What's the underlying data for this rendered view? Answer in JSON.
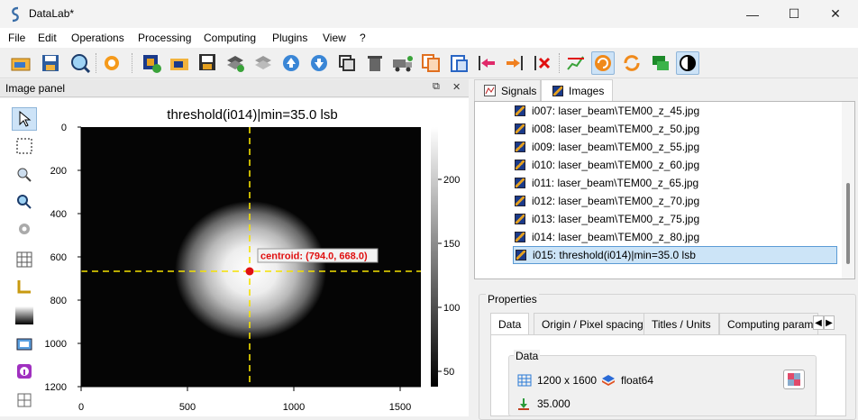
{
  "window": {
    "title": "DataLab*",
    "controls": {
      "minimize": "—",
      "maximize": "☐",
      "close": "✕"
    }
  },
  "menu": [
    "File",
    "Edit",
    "Operations",
    "Processing",
    "Computing",
    "Plugins",
    "View",
    "?"
  ],
  "toolbar_icons": [
    "open-icon",
    "save-icon",
    "zoom-icon",
    "settings-icon",
    "new-image-icon",
    "open-folder-icon",
    "save-image-icon",
    "layers-icon",
    "layers-gray-icon",
    "move-up-icon",
    "move-down-icon",
    "duplicate-icon",
    "delete-icon",
    "truck-icon",
    "copy-icon",
    "paste-icon",
    "import-icon",
    "export-icon",
    "remove-icon",
    "plot-icon",
    "refresh-active-icon",
    "sync-icon",
    "annotation-icon",
    "contrast-icon"
  ],
  "image_panel": {
    "title": "Image panel",
    "plot_title": "threshold(i014)|min=35.0 lsb",
    "centroid_label": "centroid: (794.0, 668.0)"
  },
  "colors": {
    "accent": "#cde3f7",
    "crosshair": "#f5e100",
    "marker": "#e01010",
    "label": "#e01010"
  },
  "tabs": {
    "signals": "Signals",
    "images": "Images"
  },
  "image_list": [
    "i007: laser_beam\\TEM00_z_45.jpg",
    "i008: laser_beam\\TEM00_z_50.jpg",
    "i009: laser_beam\\TEM00_z_55.jpg",
    "i010: laser_beam\\TEM00_z_60.jpg",
    "i011: laser_beam\\TEM00_z_65.jpg",
    "i012: laser_beam\\TEM00_z_70.jpg",
    "i013: laser_beam\\TEM00_z_75.jpg",
    "i014: laser_beam\\TEM00_z_80.jpg",
    "i015: threshold(i014)|min=35.0 lsb"
  ],
  "properties": {
    "title": "Properties",
    "tabs": [
      "Data",
      "Origin / Pixel spacing",
      "Titles / Units",
      "Computing parame"
    ],
    "data_group": "Data",
    "size": "1200 x 1600",
    "dtype": "float64",
    "min_value": "35.000"
  },
  "plot": {
    "x_ticks": [
      "0",
      "500",
      "1000",
      "1500"
    ],
    "y_ticks": [
      "0",
      "200",
      "400",
      "600",
      "800",
      "1000",
      "1200"
    ],
    "colorbar_ticks": [
      "200",
      "150",
      "100",
      "50"
    ]
  }
}
